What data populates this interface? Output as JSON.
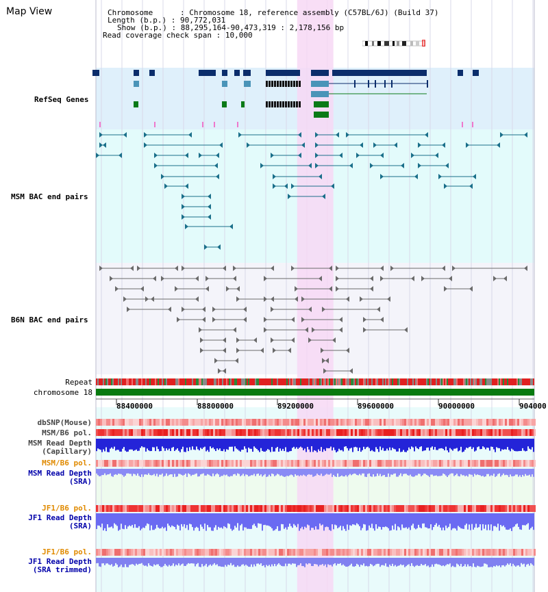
{
  "title": "Map View",
  "info": {
    "chromosome_key": "Chromosome",
    "chromosome_val": "Chromosome 18, reference assembly (C57BL/6J) (Build 37)",
    "length_key": "Length (b.p.)",
    "length_val": "90,772,031",
    "show_key": "Show (b.p.)",
    "show_val": "88,295,164-90,473,319 : 2,178,156 bp",
    "coverage_key": "Read coverage check span",
    "coverage_val": "10,000"
  },
  "view": {
    "start": 88295164,
    "end": 90473319,
    "highlight_start": 89295000,
    "highlight_end": 89475000
  },
  "tracks": {
    "refseq": "RefSeq Genes",
    "msm_bac": "MSM BAC end pairs",
    "b6n_bac": "B6N BAC end pairs",
    "repeat": "Repeat",
    "chromosome": "chromosome 18"
  },
  "axis": {
    "ticks": [
      "88400000",
      "88800000",
      "89200000",
      "89600000",
      "90000000",
      "904000"
    ]
  },
  "lower_tracks": [
    {
      "label": "dbSNP(Mouse)",
      "color": "#444444"
    },
    {
      "label": "MSM/B6 pol.",
      "color": "#444444"
    },
    {
      "label": "MSM Read Depth",
      "label2": "(Capillary)",
      "color": "#444444"
    },
    {
      "label": "MSM/B6 pol.",
      "color": "#e08a00"
    },
    {
      "label": "MSM Read Depth",
      "label2": "(SRA)",
      "color": "#0000aa"
    },
    {
      "label": "JF1/B6 pol.",
      "color": "#e08a00"
    },
    {
      "label": "JF1 Read Depth",
      "label2": "(SRA)",
      "color": "#0000aa"
    },
    {
      "label": "JF1/B6 pol.",
      "color": "#e08a00"
    },
    {
      "label": "JF1 Read Depth",
      "label2": "(SRA trimmed)",
      "color": "#0000aa"
    }
  ],
  "colors": {
    "refseq_bg": "#dff0fb",
    "msm_bg": "#e3fbfb",
    "b6n_bg": "#f4f4fa",
    "highlight": "#f7d8f5",
    "gene_dark": "#0b2d6b",
    "gene_teal": "#4a94b8",
    "gene_green": "#0a7a17",
    "bac_teal": "#1a6f8a",
    "bac_grey": "#6a6a6a",
    "refseq_label": "#0000aa",
    "msm_label": "#1a6f8a",
    "b6n_label": "#555555"
  }
}
